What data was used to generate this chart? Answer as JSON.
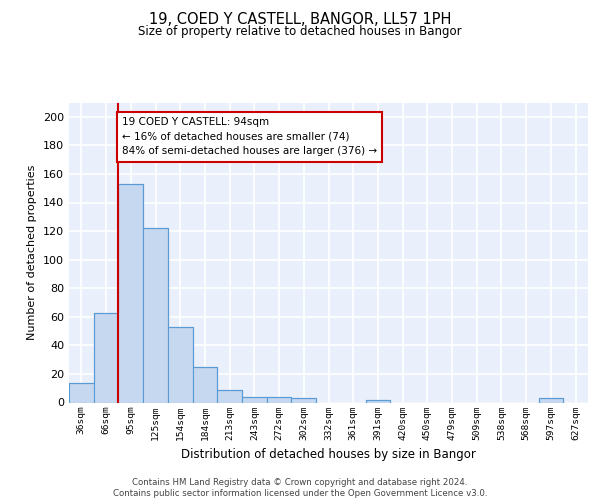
{
  "title1": "19, COED Y CASTELL, BANGOR, LL57 1PH",
  "title2": "Size of property relative to detached houses in Bangor",
  "xlabel": "Distribution of detached houses by size in Bangor",
  "ylabel": "Number of detached properties",
  "bin_labels": [
    "36sqm",
    "66sqm",
    "95sqm",
    "125sqm",
    "154sqm",
    "184sqm",
    "213sqm",
    "243sqm",
    "272sqm",
    "302sqm",
    "332sqm",
    "361sqm",
    "391sqm",
    "420sqm",
    "450sqm",
    "479sqm",
    "509sqm",
    "538sqm",
    "568sqm",
    "597sqm",
    "627sqm"
  ],
  "bar_values": [
    14,
    63,
    153,
    122,
    53,
    25,
    9,
    4,
    4,
    3,
    0,
    0,
    2,
    0,
    0,
    0,
    0,
    0,
    0,
    3,
    0
  ],
  "bar_color": "#c5d8f0",
  "bar_edge_color": "#5b9bd5",
  "marker_line_color": "#cc0000",
  "annotation_text": "19 COED Y CASTELL: 94sqm\n← 16% of detached houses are smaller (74)\n84% of semi-detached houses are larger (376) →",
  "annotation_box_color": "#ffffff",
  "annotation_box_edge": "#cc0000",
  "footer_text": "Contains HM Land Registry data © Crown copyright and database right 2024.\nContains public sector information licensed under the Open Government Licence v3.0.",
  "ylim": [
    0,
    210
  ],
  "yticks": [
    0,
    20,
    40,
    60,
    80,
    100,
    120,
    140,
    160,
    180,
    200
  ],
  "background_color": "#eaf0fb",
  "grid_color": "#ffffff",
  "fig_background": "#ffffff"
}
